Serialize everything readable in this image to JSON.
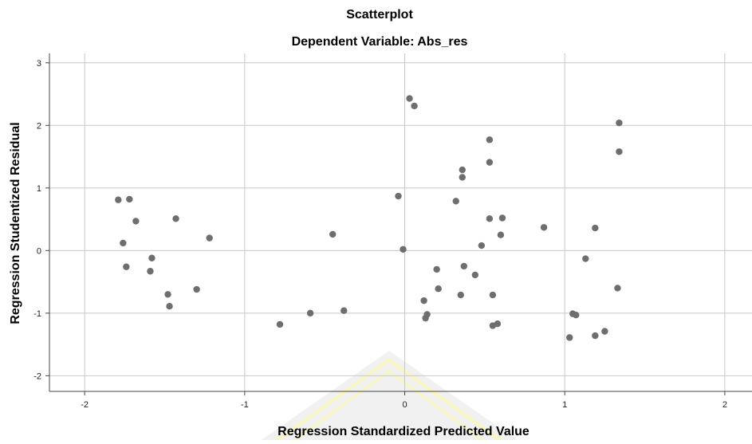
{
  "chart_data": {
    "type": "scatter",
    "title": "Scatterplot",
    "subtitle": "Dependent Variable: Abs_res",
    "xlabel": "Regression Standardized Predicted Value",
    "ylabel": "Regression Studentized Residual",
    "xlim": [
      -2.22,
      2.17
    ],
    "ylim": [
      -2.25,
      3.15
    ],
    "xticks": [
      "-2",
      "-1",
      "0",
      "1",
      "2"
    ],
    "yticks": [
      "-2",
      "-1",
      "0",
      "1",
      "2",
      "3"
    ],
    "grid": true,
    "marker_color": "#6e6e6e",
    "points": [
      {
        "x": -1.79,
        "y": 0.81
      },
      {
        "x": -1.72,
        "y": 0.82
      },
      {
        "x": -1.68,
        "y": 0.47
      },
      {
        "x": -1.76,
        "y": 0.12
      },
      {
        "x": -1.74,
        "y": -0.26
      },
      {
        "x": -1.58,
        "y": -0.12
      },
      {
        "x": -1.59,
        "y": -0.33
      },
      {
        "x": -1.48,
        "y": -0.7
      },
      {
        "x": -1.47,
        "y": -0.89
      },
      {
        "x": -1.43,
        "y": 0.51
      },
      {
        "x": -1.3,
        "y": -0.62
      },
      {
        "x": -1.22,
        "y": 0.2
      },
      {
        "x": -0.78,
        "y": -1.18
      },
      {
        "x": -0.59,
        "y": -1.0
      },
      {
        "x": -0.45,
        "y": 0.26
      },
      {
        "x": -0.38,
        "y": -0.96
      },
      {
        "x": -0.04,
        "y": 0.87
      },
      {
        "x": -0.01,
        "y": 0.02
      },
      {
        "x": 0.03,
        "y": 2.43
      },
      {
        "x": 0.06,
        "y": 2.31
      },
      {
        "x": 0.12,
        "y": -0.8
      },
      {
        "x": 0.13,
        "y": -1.08
      },
      {
        "x": 0.14,
        "y": -1.02
      },
      {
        "x": 0.2,
        "y": -0.3
      },
      {
        "x": 0.21,
        "y": -0.61
      },
      {
        "x": 0.32,
        "y": 0.79
      },
      {
        "x": 0.35,
        "y": -0.71
      },
      {
        "x": 0.36,
        "y": 1.29
      },
      {
        "x": 0.36,
        "y": 1.17
      },
      {
        "x": 0.37,
        "y": -0.25
      },
      {
        "x": 0.44,
        "y": -0.39
      },
      {
        "x": 0.48,
        "y": 0.08
      },
      {
        "x": 0.53,
        "y": 1.77
      },
      {
        "x": 0.53,
        "y": 1.41
      },
      {
        "x": 0.53,
        "y": 0.51
      },
      {
        "x": 0.55,
        "y": -0.71
      },
      {
        "x": 0.55,
        "y": -1.2
      },
      {
        "x": 0.58,
        "y": -1.17
      },
      {
        "x": 0.6,
        "y": 0.25
      },
      {
        "x": 0.61,
        "y": 0.52
      },
      {
        "x": 0.87,
        "y": 0.37
      },
      {
        "x": 1.03,
        "y": -1.39
      },
      {
        "x": 1.05,
        "y": -1.01
      },
      {
        "x": 1.07,
        "y": -1.03
      },
      {
        "x": 1.13,
        "y": -0.13
      },
      {
        "x": 1.19,
        "y": 0.36
      },
      {
        "x": 1.19,
        "y": -1.36
      },
      {
        "x": 1.25,
        "y": -1.29
      },
      {
        "x": 1.33,
        "y": -0.6
      },
      {
        "x": 1.34,
        "y": 2.04
      },
      {
        "x": 1.34,
        "y": 1.58
      }
    ]
  }
}
